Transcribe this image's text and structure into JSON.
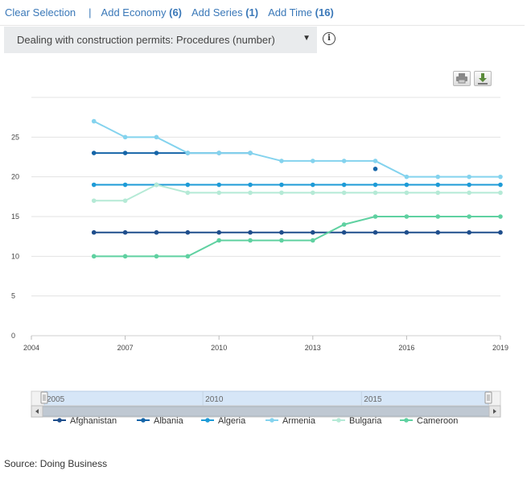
{
  "toolbar": {
    "clear_selection": "Clear Selection",
    "separator": "|",
    "add_economy": "Add Economy",
    "add_economy_count": "(6)",
    "add_series": "Add Series",
    "add_series_count": "(1)",
    "add_time": "Add Time",
    "add_time_count": "(16)"
  },
  "indicator_select": {
    "selected": "Dealing with construction permits: Procedures (number)",
    "caret": "▼"
  },
  "info_icon": "i",
  "chart_buttons": {
    "print": "print-icon",
    "download": "download-icon"
  },
  "chart_data": {
    "type": "line",
    "title": "",
    "xlabel": "",
    "ylabel": "",
    "xlim": [
      2004,
      2019
    ],
    "ylim": [
      0,
      30
    ],
    "x_ticks": [
      2004,
      2007,
      2010,
      2013,
      2016,
      2019
    ],
    "y_ticks": [
      0,
      5,
      10,
      15,
      20,
      25
    ],
    "grid": true,
    "legend_position": "bottom",
    "x": [
      2006,
      2007,
      2008,
      2009,
      2010,
      2011,
      2012,
      2013,
      2014,
      2015,
      2016,
      2017,
      2018,
      2019
    ],
    "series": [
      {
        "name": "Afghanistan",
        "color": "#1f4e8c",
        "values": [
          13,
          13,
          13,
          13,
          13,
          13,
          13,
          13,
          13,
          13,
          13,
          13,
          13,
          13
        ]
      },
      {
        "name": "Albania",
        "color": "#1565a8",
        "values": [
          23,
          23,
          23,
          23,
          23,
          23,
          null,
          null,
          null,
          21,
          null,
          null,
          null,
          null
        ]
      },
      {
        "name": "Algeria",
        "color": "#1e9bd7",
        "values": [
          19,
          19,
          19,
          19,
          19,
          19,
          19,
          19,
          19,
          19,
          19,
          19,
          19,
          19
        ]
      },
      {
        "name": "Armenia",
        "color": "#84d3ee",
        "values": [
          27,
          25,
          25,
          23,
          23,
          23,
          22,
          22,
          22,
          22,
          20,
          20,
          20,
          20
        ]
      },
      {
        "name": "Bulgaria",
        "color": "#b5ead6",
        "values": [
          17,
          17,
          19,
          18,
          18,
          18,
          18,
          18,
          18,
          18,
          18,
          18,
          18,
          18
        ]
      },
      {
        "name": "Cameroon",
        "color": "#5fd1a1",
        "values": [
          10,
          10,
          10,
          10,
          12,
          12,
          12,
          12,
          14,
          15,
          15,
          15,
          15,
          15
        ]
      }
    ]
  },
  "navigator": {
    "labels": [
      "2005",
      "2010",
      "2015"
    ],
    "range": [
      2005,
      2019
    ]
  },
  "source": "Source: Doing Business"
}
